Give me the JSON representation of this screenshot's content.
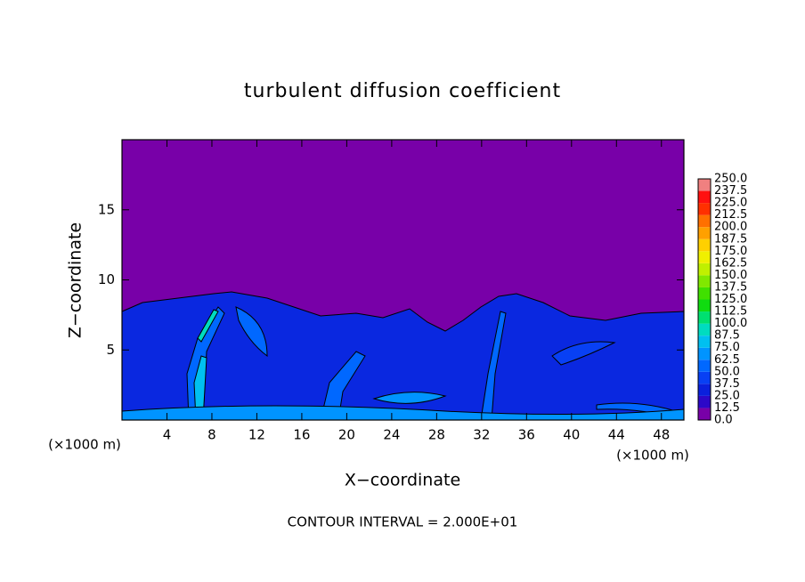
{
  "chart_data": {
    "type": "contour",
    "title": "turbulent diffusion coefficient",
    "x_label": "X−coordinate",
    "y_label": "Z−coordinate",
    "x_unit": "(×1000 m)",
    "y_unit": "(×1000 m)",
    "annotation": "CONTOUR INTERVAL = 2.000E+01",
    "xlim": [
      0,
      50
    ],
    "ylim": [
      0,
      20
    ],
    "xticks": [
      4,
      8,
      12,
      16,
      20,
      24,
      28,
      32,
      36,
      40,
      44,
      48
    ],
    "yticks": [
      5,
      10,
      15
    ],
    "colorbar": {
      "levels": [
        {
          "value": 0,
          "label": "0.0"
        },
        {
          "value": 12.5,
          "label": "12.5"
        },
        {
          "value": 25,
          "label": "25.0"
        },
        {
          "value": 37.5,
          "label": "37.5"
        },
        {
          "value": 50,
          "label": "50.0"
        },
        {
          "value": 62.5,
          "label": "62.5"
        },
        {
          "value": 75,
          "label": "75.0"
        },
        {
          "value": 87.5,
          "label": "87.5"
        },
        {
          "value": 100,
          "label": "100.0"
        },
        {
          "value": 112.5,
          "label": "112.5"
        },
        {
          "value": 125,
          "label": "125.0"
        },
        {
          "value": 137.5,
          "label": "137.5"
        },
        {
          "value": 150,
          "label": "150.0"
        },
        {
          "value": 162.5,
          "label": "162.5"
        },
        {
          "value": 175,
          "label": "175.0"
        },
        {
          "value": 187.5,
          "label": "187.5"
        },
        {
          "value": 200,
          "label": "200.0"
        },
        {
          "value": 212.5,
          "label": "212.5"
        },
        {
          "value": 225,
          "label": "225.0"
        },
        {
          "value": 237.5,
          "label": "237.5"
        },
        {
          "value": 250,
          "label": "250.0"
        }
      ],
      "colors": [
        "#7800a8",
        "#2c08c8",
        "#0a20dc",
        "#0840f4",
        "#0068ff",
        "#0094ff",
        "#00c0f0",
        "#00dcc0",
        "#00e070",
        "#10dc10",
        "#40e000",
        "#80e800",
        "#c0f000",
        "#f0f000",
        "#ffd000",
        "#ffa000",
        "#ff7000",
        "#ff3000",
        "#ff1010",
        "#f08080"
      ]
    }
  }
}
